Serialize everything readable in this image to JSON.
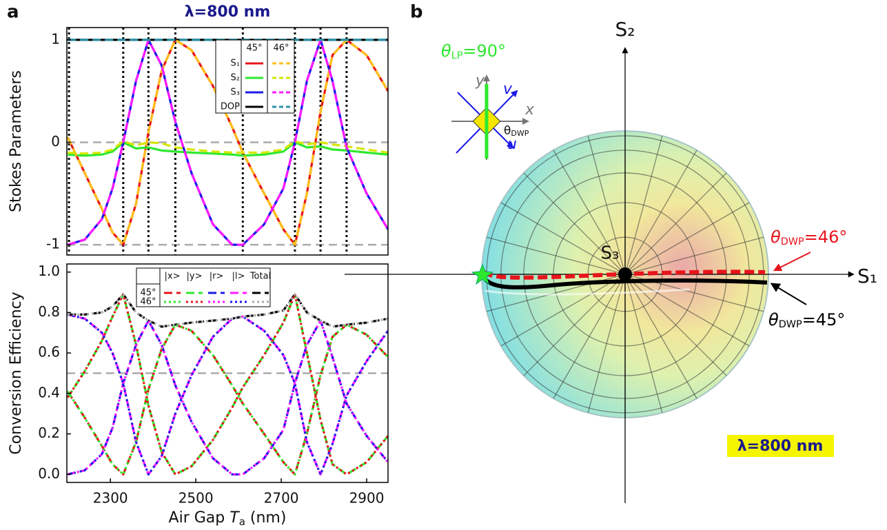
{
  "chart_data": [
    {
      "type": "line",
      "panel_label": "a",
      "title": "λ=800 nm",
      "ylabel": "Stokes Parameters",
      "x": [
        2200,
        2240,
        2280,
        2305,
        2330,
        2360,
        2389,
        2420,
        2452,
        2490,
        2540,
        2585,
        2610,
        2660,
        2705,
        2732,
        2760,
        2792,
        2820,
        2853,
        2900,
        2950
      ],
      "xlim": [
        2198,
        2950
      ],
      "ylim": [
        -1.1,
        1.12
      ],
      "yticks": [
        1,
        0,
        -1
      ],
      "hlines": [
        1,
        0,
        -1
      ],
      "vlines": [
        2203,
        2330,
        2389,
        2452,
        2610,
        2732,
        2792,
        2853
      ],
      "series_names": [
        "S₁",
        "S₂",
        "S₃",
        "DOP"
      ],
      "series_groups": [
        {
          "name": "45°",
          "line_style": "solid",
          "series": [
            {
              "color": "#e8141c",
              "values": [
                0.05,
                -0.3,
                -0.65,
                -0.88,
                -1,
                -0.6,
                0.1,
                0.7,
                1,
                0.9,
                0.55,
                0.15,
                -0.1,
                -0.5,
                -0.85,
                -1,
                -0.5,
                0.3,
                0.85,
                1,
                0.85,
                0.5
              ]
            },
            {
              "color": "#2ee82e",
              "values": [
                -0.12,
                -0.13,
                -0.12,
                -0.09,
                0,
                -0.06,
                -0.05,
                -0.08,
                -0.09,
                -0.1,
                -0.11,
                -0.12,
                -0.13,
                -0.12,
                -0.09,
                0,
                -0.05,
                -0.04,
                -0.07,
                -0.08,
                -0.1,
                -0.12
              ]
            },
            {
              "color": "#1a1ae8",
              "values": [
                -1,
                -0.95,
                -0.75,
                -0.45,
                0,
                0.6,
                1,
                0.75,
                0.2,
                -0.3,
                -0.8,
                -1,
                -1,
                -0.8,
                -0.45,
                0,
                0.6,
                1,
                0.6,
                -0.05,
                -0.5,
                -0.85
              ]
            },
            {
              "color": "#000000",
              "values": [
                1,
                1,
                1,
                1,
                1,
                1,
                1,
                1,
                1,
                1,
                1,
                1,
                1,
                1,
                1,
                1,
                1,
                1,
                1,
                1,
                1,
                1
              ]
            }
          ]
        },
        {
          "name": "46°",
          "line_style": "dashed",
          "series": [
            {
              "color": "#ffbf1a",
              "values": [
                0.05,
                -0.3,
                -0.65,
                -0.88,
                -1,
                -0.6,
                0.1,
                0.7,
                1,
                0.9,
                0.55,
                0.15,
                -0.1,
                -0.5,
                -0.85,
                -1,
                -0.5,
                0.3,
                0.85,
                1,
                0.85,
                0.5
              ]
            },
            {
              "color": "#d6e600",
              "values": [
                -0.1,
                -0.11,
                -0.1,
                -0.07,
                0.01,
                -0.03,
                0,
                -0.01,
                -0.05,
                -0.07,
                -0.09,
                -0.1,
                -0.1,
                -0.1,
                -0.07,
                0.01,
                -0.02,
                0,
                -0.02,
                -0.04,
                -0.07,
                -0.1
              ]
            },
            {
              "color": "#ff1aff",
              "values": [
                -1,
                -0.95,
                -0.75,
                -0.45,
                0,
                0.6,
                1,
                0.75,
                0.2,
                -0.3,
                -0.8,
                -1,
                -1,
                -0.8,
                -0.45,
                0,
                0.6,
                1,
                0.6,
                -0.05,
                -0.5,
                -0.85
              ]
            },
            {
              "color": "#2a93a8",
              "values": [
                1,
                1,
                1,
                1,
                1,
                1,
                1,
                1,
                1,
                1,
                1,
                1,
                1,
                1,
                1,
                1,
                1,
                1,
                1,
                1,
                1,
                1
              ]
            }
          ]
        }
      ]
    },
    {
      "type": "line",
      "ylabel": "Conversion Efficiency",
      "xlabel": [
        "Air Gap ",
        "T",
        "a",
        " (nm)"
      ],
      "x": [
        2200,
        2240,
        2280,
        2305,
        2330,
        2360,
        2389,
        2420,
        2452,
        2490,
        2540,
        2585,
        2610,
        2660,
        2705,
        2732,
        2760,
        2792,
        2820,
        2853,
        2900,
        2950
      ],
      "xlim": [
        2198,
        2950
      ],
      "ylim": [
        -0.04,
        1.04
      ],
      "yticks": [
        {
          "value": 0,
          "label": "0.0"
        },
        {
          "value": 0.2,
          "label": "0.2"
        },
        {
          "value": 0.4,
          "label": "0.4"
        },
        {
          "value": 0.6,
          "label": "0.6"
        },
        {
          "value": 0.8,
          "label": "0.8"
        },
        {
          "value": 1,
          "label": "1.0"
        }
      ],
      "xticks": [
        2300,
        2500,
        2700,
        2900
      ],
      "hlines": [
        0.5
      ],
      "series_names": [
        "|x>",
        "|y>",
        "|r>",
        "|l>",
        "Total"
      ],
      "series_groups": [
        {
          "name": "45°",
          "line_style": "dashed",
          "series": [
            {
              "color": "#e8141c",
              "values": [
                0.41,
                0.28,
                0.14,
                0.05,
                0,
                0.16,
                0.42,
                0.62,
                0.74,
                0.71,
                0.59,
                0.44,
                0.35,
                0.2,
                0.06,
                0,
                0.2,
                0.49,
                0.68,
                0.74,
                0.69,
                0.58
              ]
            },
            {
              "color": "#2ee82e",
              "values": [
                0.38,
                0.51,
                0.66,
                0.78,
                0.89,
                0.64,
                0.34,
                0.11,
                0,
                0.04,
                0.17,
                0.33,
                0.43,
                0.59,
                0.75,
                0.89,
                0.6,
                0.27,
                0.05,
                0,
                0.06,
                0.19
              ]
            },
            {
              "color": "#1a1ae8",
              "values": [
                0,
                0.02,
                0.1,
                0.23,
                0.45,
                0.64,
                0.76,
                0.64,
                0.44,
                0.26,
                0.08,
                0,
                0,
                0.08,
                0.22,
                0.45,
                0.64,
                0.76,
                0.58,
                0.35,
                0.19,
                0.06
              ]
            },
            {
              "color": "#ff1aff",
              "values": [
                0.79,
                0.77,
                0.7,
                0.6,
                0.45,
                0.16,
                0,
                0.09,
                0.3,
                0.49,
                0.68,
                0.77,
                0.78,
                0.71,
                0.59,
                0.45,
                0.16,
                0,
                0.15,
                0.39,
                0.56,
                0.71
              ]
            },
            {
              "color": "#000000",
              "values": [
                0.79,
                0.79,
                0.8,
                0.83,
                0.89,
                0.8,
                0.76,
                0.73,
                0.74,
                0.75,
                0.76,
                0.77,
                0.78,
                0.79,
                0.81,
                0.89,
                0.8,
                0.76,
                0.73,
                0.74,
                0.75,
                0.77
              ]
            }
          ]
        },
        {
          "name": "46°",
          "line_style": "dotted",
          "series": [
            {
              "color": "#2ee82e",
              "values": [
                0.41,
                0.28,
                0.14,
                0.05,
                0,
                0.16,
                0.42,
                0.62,
                0.74,
                0.71,
                0.59,
                0.44,
                0.35,
                0.2,
                0.06,
                0,
                0.2,
                0.49,
                0.68,
                0.74,
                0.69,
                0.58
              ]
            },
            {
              "color": "#e8141c",
              "values": [
                0.38,
                0.51,
                0.66,
                0.78,
                0.89,
                0.64,
                0.34,
                0.11,
                0,
                0.04,
                0.17,
                0.33,
                0.43,
                0.59,
                0.75,
                0.89,
                0.6,
                0.27,
                0.05,
                0,
                0.06,
                0.19
              ]
            },
            {
              "color": "#ff1aff",
              "values": [
                0,
                0.02,
                0.1,
                0.23,
                0.45,
                0.64,
                0.76,
                0.64,
                0.44,
                0.26,
                0.08,
                0,
                0,
                0.08,
                0.22,
                0.45,
                0.64,
                0.76,
                0.58,
                0.35,
                0.19,
                0.06
              ]
            },
            {
              "color": "#1a1ae8",
              "values": [
                0.79,
                0.77,
                0.7,
                0.6,
                0.45,
                0.16,
                0,
                0.09,
                0.3,
                0.49,
                0.68,
                0.77,
                0.78,
                0.71,
                0.59,
                0.45,
                0.16,
                0,
                0.15,
                0.39,
                0.56,
                0.71
              ]
            },
            {
              "color": "#aaaaaa",
              "values": [
                0.79,
                0.79,
                0.8,
                0.83,
                0.89,
                0.8,
                0.76,
                0.73,
                0.74,
                0.75,
                0.76,
                0.77,
                0.78,
                0.79,
                0.81,
                0.89,
                0.8,
                0.76,
                0.73,
                0.74,
                0.75,
                0.77
              ]
            }
          ]
        }
      ]
    },
    {
      "type": "poincare",
      "panel_label": "b",
      "axis_labels": [
        "S₁",
        "S₂",
        "S₃"
      ],
      "lp_label": {
        "symbol": "θ",
        "sub": "LP",
        "text": "=90°"
      },
      "trace_labels": [
        {
          "symbol": "θ",
          "sub": "DWP",
          "text": "=46°"
        },
        {
          "symbol": "θ",
          "sub": "DWP",
          "text": "=45°"
        }
      ],
      "inset_labels": {
        "x": "x",
        "y": "y",
        "u": "u",
        "v": "v",
        "angle": "θ",
        "angle_sub": "DWP"
      },
      "wavelength": "λ=800 nm"
    }
  ]
}
